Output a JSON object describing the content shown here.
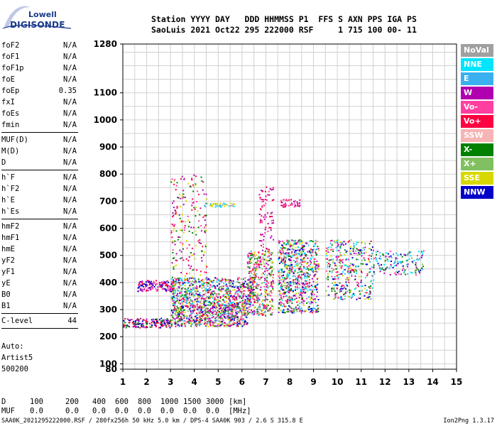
{
  "logo": {
    "line1": "Lowell",
    "line2": "DIGISONDE"
  },
  "header": {
    "line1": "Station YYYY DAY   DDD HHMMSS P1  FFS S AXN PPS IGA PS",
    "line2": "SaoLuis 2021 Oct22 295 222000 RSF     1 715 100 00- 11"
  },
  "parameters": [
    {
      "name": "foF2",
      "value": "N/A"
    },
    {
      "name": "foF1",
      "value": "N/A"
    },
    {
      "name": "foF1p",
      "value": "N/A"
    },
    {
      "name": "foE",
      "value": "N/A"
    },
    {
      "name": "foEp",
      "value": "0.35"
    },
    {
      "name": "fxI",
      "value": "N/A"
    },
    {
      "name": "foEs",
      "value": "N/A"
    },
    {
      "name": "fmin",
      "value": "N/A"
    },
    {
      "sep": true
    },
    {
      "name": "MUF(D)",
      "value": "N/A"
    },
    {
      "name": "M(D)",
      "value": "N/A"
    },
    {
      "name": "D",
      "value": "N/A"
    },
    {
      "sep": true
    },
    {
      "name": "h`F",
      "value": "N/A"
    },
    {
      "name": "h`F2",
      "value": "N/A"
    },
    {
      "name": "h`E",
      "value": "N/A"
    },
    {
      "name": "h`Es",
      "value": "N/A"
    },
    {
      "sep": true
    },
    {
      "name": "hmF2",
      "value": "N/A"
    },
    {
      "name": "hmF1",
      "value": "N/A"
    },
    {
      "name": "hmE",
      "value": "N/A"
    },
    {
      "name": "yF2",
      "value": "N/A"
    },
    {
      "name": "yF1",
      "value": "N/A"
    },
    {
      "name": "yE",
      "value": "N/A"
    },
    {
      "name": "B0",
      "value": "N/A"
    },
    {
      "name": "B1",
      "value": "N/A"
    },
    {
      "sep": true
    },
    {
      "name": "C-level",
      "value": "44"
    },
    {
      "sep": true
    }
  ],
  "artist": [
    "Auto:",
    "Artist5",
    "500200"
  ],
  "legend": [
    {
      "label": "NoVal",
      "color": "#a0a0a0"
    },
    {
      "label": "NNE",
      "color": "#00e5ff"
    },
    {
      "label": "E",
      "color": "#3ab0f0"
    },
    {
      "label": "W",
      "color": "#b000b0"
    },
    {
      "label": "Vo-",
      "color": "#ff3fa0"
    },
    {
      "label": "Vo+",
      "color": "#ff0040"
    },
    {
      "label": "SSW",
      "color": "#f6b4b4"
    },
    {
      "label": "X-",
      "color": "#008000"
    },
    {
      "label": "X+",
      "color": "#80c060"
    },
    {
      "label": "SSE",
      "color": "#d8d800"
    },
    {
      "label": "NNW",
      "color": "#0000c8"
    }
  ],
  "dtable": {
    "row1_label": "D",
    "row1_values": [
      "100",
      "200",
      "400",
      "600",
      "800",
      "1000",
      "1500",
      "3000",
      "[km]"
    ],
    "row2_label": "MUF",
    "row2_values": [
      "0.0",
      "0.0",
      "0.0",
      "0.0",
      "0.0",
      "0.0",
      "0.0",
      "0.0",
      "[MHz]"
    ]
  },
  "footer": {
    "left": "SAA0K_2021295222000.RSF / 280fx256h 50 kHz 5.0 km / DPS-4 SAA0K 903 / 2.6 S 315.8 E",
    "right": "Ion2Png 1.3.17"
  },
  "chart_data": {
    "type": "scatter",
    "x_ticks": [
      "1",
      "2",
      "3",
      "4",
      "5",
      "6",
      "7",
      "8",
      "9",
      "10",
      "11",
      "12",
      "13",
      "14",
      "15"
    ],
    "y_ticks": [
      "80",
      "100",
      "200",
      "300",
      "400",
      "500",
      "600",
      "700",
      "800",
      "900",
      "1000",
      "1100",
      "1280"
    ],
    "xlim": [
      1,
      15
    ],
    "ylim": [
      80,
      1280
    ],
    "grid": true,
    "clusters": [
      {
        "f": [
          1.0,
          3.0
        ],
        "h": [
          235,
          270
        ],
        "n": 160,
        "colors": [
          "W",
          "NNW",
          "Vo+",
          "X-"
        ]
      },
      {
        "f": [
          1.6,
          3.2
        ],
        "h": [
          370,
          410
        ],
        "n": 140,
        "colors": [
          "W",
          "NNW",
          "Vo-",
          "Vo+"
        ]
      },
      {
        "f": [
          3.0,
          6.2
        ],
        "h": [
          240,
          320
        ],
        "n": 700,
        "colors": [
          "Vo-",
          "Vo+",
          "X-",
          "X+",
          "W",
          "SSE",
          "NNW",
          "E"
        ]
      },
      {
        "f": [
          3.0,
          6.5
        ],
        "h": [
          320,
          420
        ],
        "n": 700,
        "colors": [
          "W",
          "Vo-",
          "Vo+",
          "E",
          "NNE",
          "X-",
          "SSE",
          "NNW",
          "X+"
        ]
      },
      {
        "f": [
          3.0,
          4.5
        ],
        "h": [
          420,
          800
        ],
        "n": 200,
        "colors": [
          "W",
          "Vo+",
          "Vo-",
          "X-",
          "SSE"
        ]
      },
      {
        "f": [
          4.3,
          5.7
        ],
        "h": [
          680,
          695
        ],
        "n": 40,
        "colors": [
          "E",
          "NNE",
          "NoVal",
          "SSE"
        ]
      },
      {
        "f": [
          6.2,
          7.3
        ],
        "h": [
          280,
          520
        ],
        "n": 400,
        "colors": [
          "Vo+",
          "Vo-",
          "W",
          "E",
          "X-",
          "X+",
          "SSE"
        ]
      },
      {
        "f": [
          6.7,
          7.3
        ],
        "h": [
          520,
          760
        ],
        "n": 80,
        "colors": [
          "Vo+",
          "W",
          "Vo-"
        ]
      },
      {
        "f": [
          7.5,
          8.5
        ],
        "h": [
          290,
          560
        ],
        "n": 500,
        "colors": [
          "Vo+",
          "Vo-",
          "W",
          "E",
          "NNE",
          "X-",
          "X+",
          "SSE",
          "NNW"
        ]
      },
      {
        "f": [
          7.6,
          8.4
        ],
        "h": [
          680,
          710
        ],
        "n": 40,
        "colors": [
          "Vo+",
          "W",
          "Vo-"
        ]
      },
      {
        "f": [
          8.5,
          9.2
        ],
        "h": [
          290,
          560
        ],
        "n": 250,
        "colors": [
          "Vo+",
          "Vo-",
          "W",
          "E",
          "NNE",
          "X-",
          "SSE",
          "NNW"
        ]
      },
      {
        "f": [
          9.5,
          11.5
        ],
        "h": [
          340,
          560
        ],
        "n": 380,
        "colors": [
          "Vo+",
          "Vo-",
          "X-",
          "X+",
          "SSE",
          "E",
          "NNE",
          "W",
          "NNW"
        ]
      },
      {
        "f": [
          11.5,
          13.6
        ],
        "h": [
          430,
          520
        ],
        "n": 140,
        "colors": [
          "E",
          "NNE",
          "W",
          "X-",
          "X+",
          "Vo-",
          "NNW"
        ]
      }
    ]
  }
}
